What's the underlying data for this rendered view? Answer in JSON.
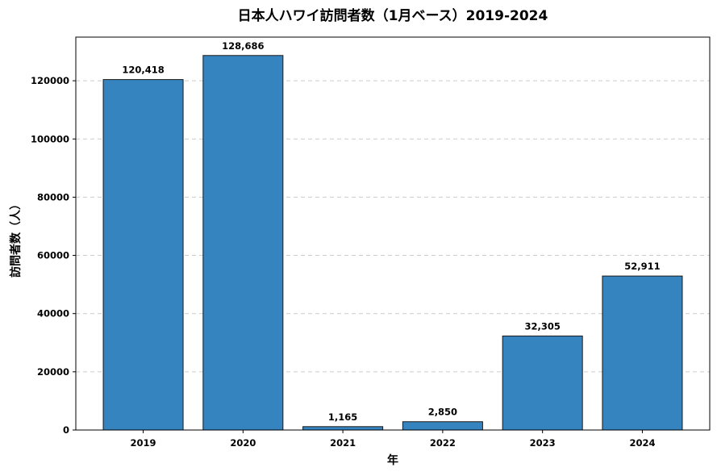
{
  "chart_data": {
    "type": "bar",
    "title": "日本人ハワイ訪問者数（1月ベース）2019-2024",
    "xlabel": "年",
    "ylabel": "訪問者数（人）",
    "categories": [
      "2019",
      "2020",
      "2021",
      "2022",
      "2023",
      "2024"
    ],
    "values": [
      120418,
      128686,
      1165,
      2850,
      32305,
      52911
    ],
    "value_labels": [
      "120,418",
      "128,686",
      "1,165",
      "2,850",
      "32,305",
      "52,911"
    ],
    "ylim": [
      0,
      135000
    ],
    "yticks": [
      0,
      20000,
      40000,
      60000,
      80000,
      100000,
      120000
    ],
    "ytick_labels": [
      "0",
      "20000",
      "40000",
      "60000",
      "80000",
      "100000",
      "120000"
    ],
    "grid": "y-dashed",
    "bar_color": "#3584bf",
    "edge_color": "#1a1a1a",
    "grid_color": "#cccccc"
  }
}
